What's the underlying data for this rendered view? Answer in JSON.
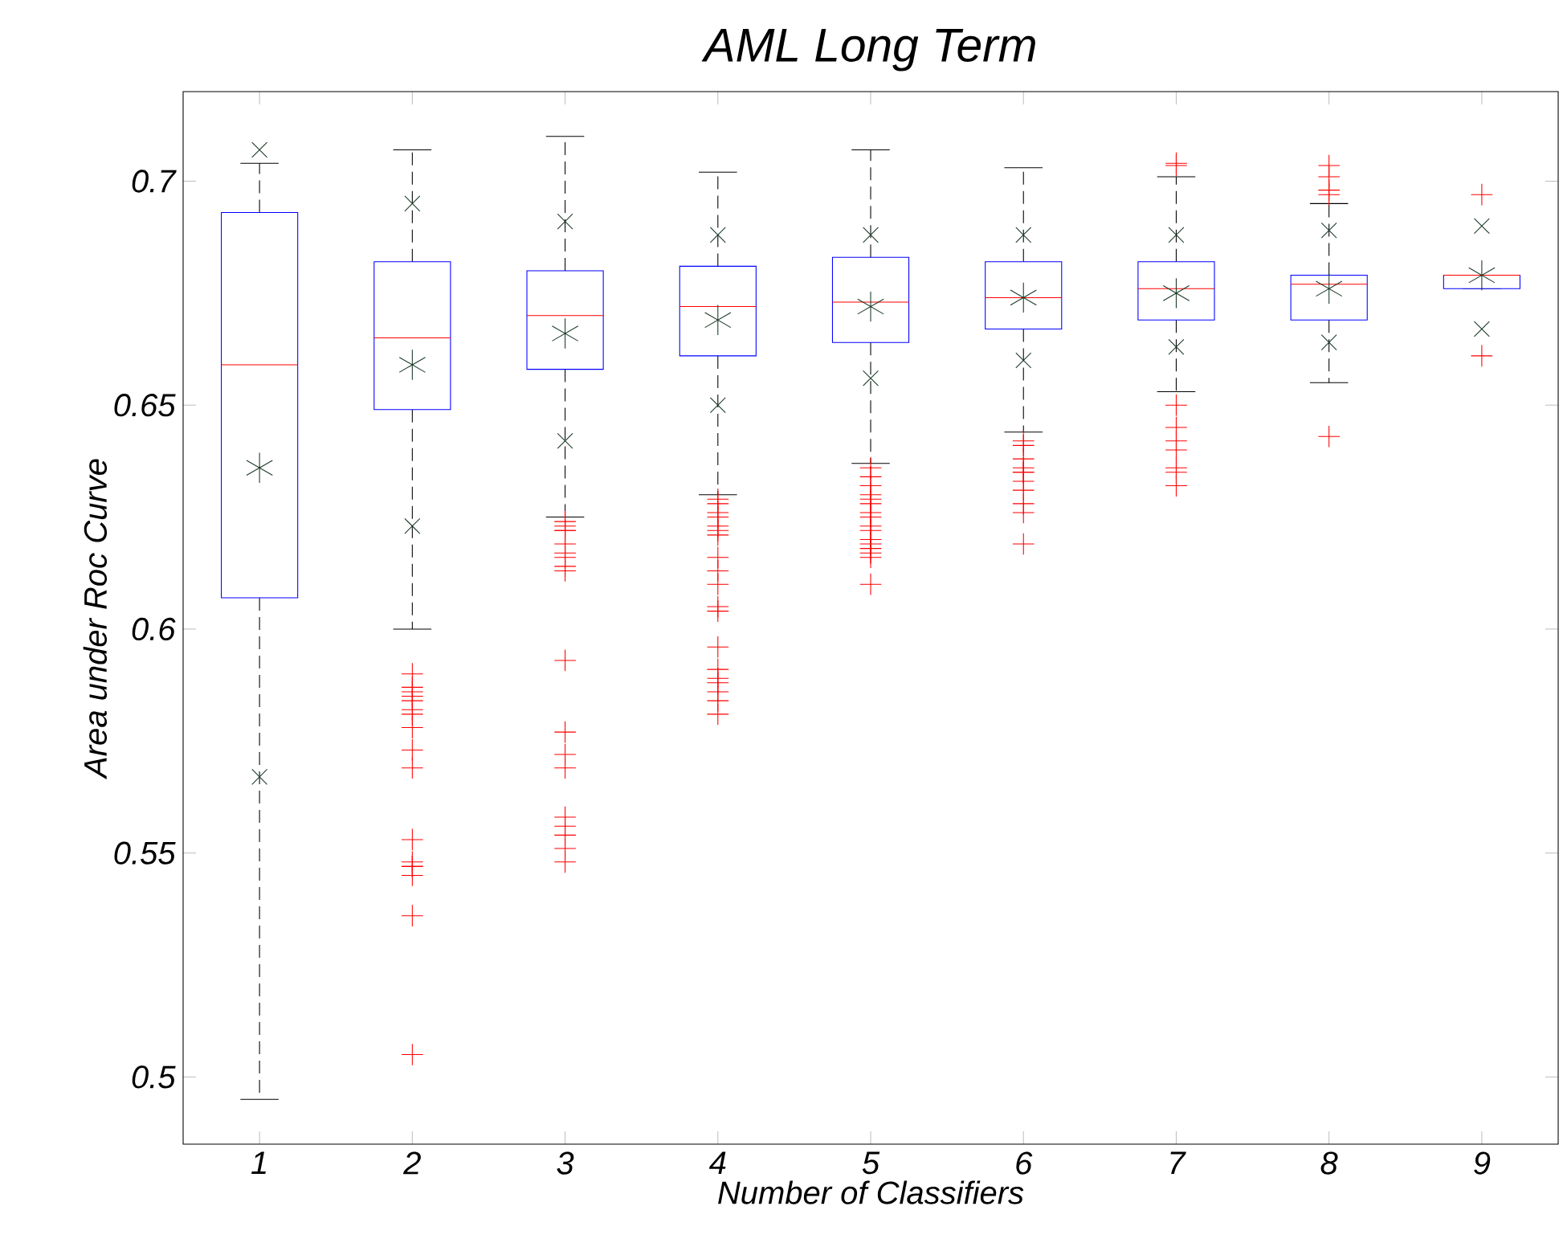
{
  "chart_data": {
    "type": "box",
    "title": "AML Long Term",
    "xlabel": "Number of Classifiers",
    "ylabel": "Area under Roc Curve",
    "categories": [
      "1",
      "2",
      "3",
      "4",
      "5",
      "6",
      "7",
      "8",
      "9"
    ],
    "ylim": [
      0.485,
      0.72
    ],
    "yticks": [
      0.5,
      0.55,
      0.6,
      0.65,
      0.7
    ],
    "color": "#0000ff",
    "boxes": [
      {
        "low": 0.495,
        "q1": 0.607,
        "median": 0.659,
        "q3": 0.693,
        "high": 0.704,
        "mean": 0.636
      },
      {
        "low": 0.6,
        "q1": 0.649,
        "median": 0.665,
        "q3": 0.682,
        "high": 0.707,
        "mean": 0.659,
        "outliers": [
          0.59,
          0.587,
          0.586,
          0.585,
          0.584,
          0.582,
          0.581,
          0.578,
          0.573,
          0.569,
          0.553,
          0.548,
          0.547,
          0.547,
          0.545,
          0.536,
          0.505
        ]
      },
      {
        "low": 0.625,
        "q1": 0.658,
        "median": 0.67,
        "q3": 0.68,
        "high": 0.71,
        "mean": 0.666,
        "outliers": [
          0.624,
          0.623,
          0.622,
          0.622,
          0.619,
          0.617,
          0.616,
          0.614,
          0.613,
          0.593,
          0.577,
          0.572,
          0.569,
          0.558,
          0.556,
          0.554,
          0.551,
          0.548
        ]
      },
      {
        "low": 0.63,
        "q1": 0.661,
        "median": 0.672,
        "q3": 0.681,
        "high": 0.702,
        "mean": 0.669,
        "outliers": [
          0.629,
          0.628,
          0.626,
          0.625,
          0.623,
          0.622,
          0.621,
          0.616,
          0.613,
          0.61,
          0.605,
          0.604,
          0.596,
          0.591,
          0.589,
          0.588,
          0.586,
          0.584,
          0.581
        ]
      },
      {
        "low": 0.637,
        "q1": 0.664,
        "median": 0.673,
        "q3": 0.683,
        "high": 0.707,
        "mean": 0.672,
        "outliers": [
          0.636,
          0.634,
          0.632,
          0.63,
          0.629,
          0.628,
          0.626,
          0.625,
          0.623,
          0.622,
          0.62,
          0.619,
          0.618,
          0.617,
          0.616,
          0.61
        ]
      },
      {
        "low": 0.644,
        "q1": 0.667,
        "median": 0.674,
        "q3": 0.682,
        "high": 0.703,
        "mean": 0.674,
        "outliers": [
          0.642,
          0.641,
          0.638,
          0.636,
          0.635,
          0.635,
          0.633,
          0.631,
          0.628,
          0.626,
          0.619
        ]
      },
      {
        "low": 0.653,
        "q1": 0.669,
        "median": 0.676,
        "q3": 0.682,
        "high": 0.701,
        "mean": 0.675,
        "outliers": [
          0.704,
          0.7035,
          0.65,
          0.645,
          0.642,
          0.64,
          0.636,
          0.635,
          0.632
        ]
      },
      {
        "low": 0.655,
        "q1": 0.669,
        "median": 0.677,
        "q3": 0.679,
        "high": 0.695,
        "mean": 0.676,
        "outliers": [
          0.7035,
          0.701,
          0.698,
          0.697,
          0.643
        ]
      },
      {
        "low": 0.676,
        "q1": 0.676,
        "median": 0.679,
        "q3": 0.679,
        "high": 0.679,
        "mean": 0.679,
        "outliers": [
          0.697,
          0.661
        ]
      }
    ],
    "series": [
      {
        "type": "scatter",
        "marker": "cross",
        "color": "#1a3a28",
        "x": [
          "1",
          "1",
          "2",
          "2",
          "3",
          "3",
          "4",
          "4",
          "5",
          "5",
          "6",
          "6",
          "7",
          "7",
          "8",
          "8",
          "9",
          "9"
        ],
        "values": [
          0.707,
          0.567,
          0.695,
          0.623,
          0.691,
          0.642,
          0.688,
          0.65,
          0.688,
          0.656,
          0.688,
          0.66,
          0.688,
          0.663,
          0.689,
          0.664,
          0.69,
          0.667
        ]
      }
    ]
  }
}
